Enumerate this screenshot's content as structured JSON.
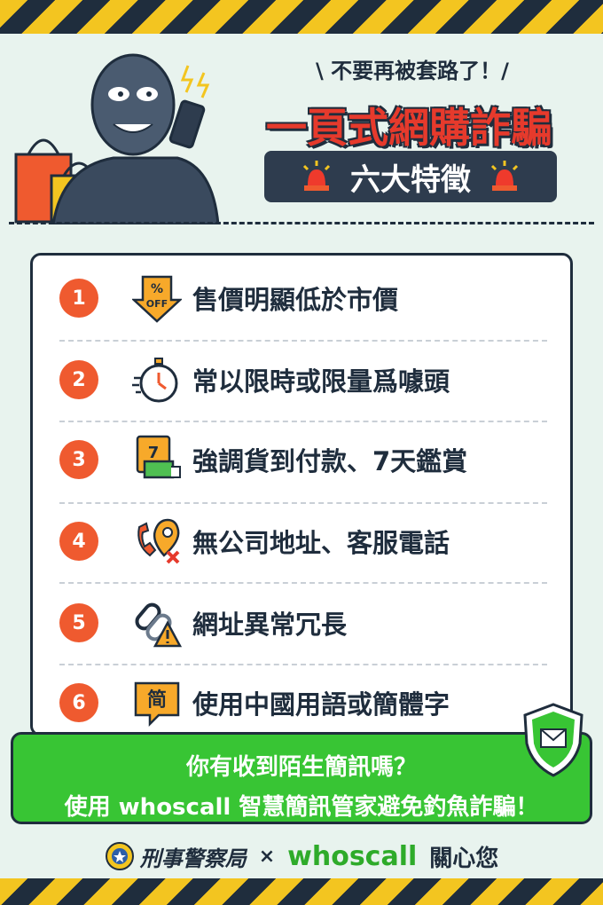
{
  "header": {
    "tagline": "\\ 不要再被套路了！/",
    "title": "一頁式網購詐騙",
    "badge": "六大特徵"
  },
  "features": [
    {
      "num": "1",
      "icon": "percent-off-arrow-icon",
      "text": "售價明顯低於市價"
    },
    {
      "num": "2",
      "icon": "stopwatch-icon",
      "text": "常以限時或限量爲噱頭"
    },
    {
      "num": "3",
      "icon": "calendar-cash-icon",
      "text": "強調貨到付款、7天鑑賞"
    },
    {
      "num": "4",
      "icon": "phone-location-x-icon",
      "text": "無公司地址、客服電話"
    },
    {
      "num": "5",
      "icon": "broken-link-warning-icon",
      "text": "網址異常冗長"
    },
    {
      "num": "6",
      "icon": "simplified-char-icon",
      "text": "使用中國用語或簡體字"
    }
  ],
  "cta": {
    "line1": "你有收到陌生簡訊嗎？",
    "line2": "使用 whoscall 智慧簡訊管家避免釣魚詐騙！"
  },
  "footer": {
    "org": "刑事警察局",
    "times": "×",
    "brand": "whoscall",
    "care": "關心您"
  },
  "icon_texts": {
    "percent": "%",
    "off": "OFF",
    "day": "7",
    "simplified": "简"
  },
  "colors": {
    "accent": "#e63a2c",
    "number_bg": "#ef5a2f",
    "dark": "#1f2d3d",
    "green": "#38c534",
    "brand_green": "#2eab2a",
    "background": "#e8f3ee",
    "stripe_yellow": "#f3c520"
  }
}
